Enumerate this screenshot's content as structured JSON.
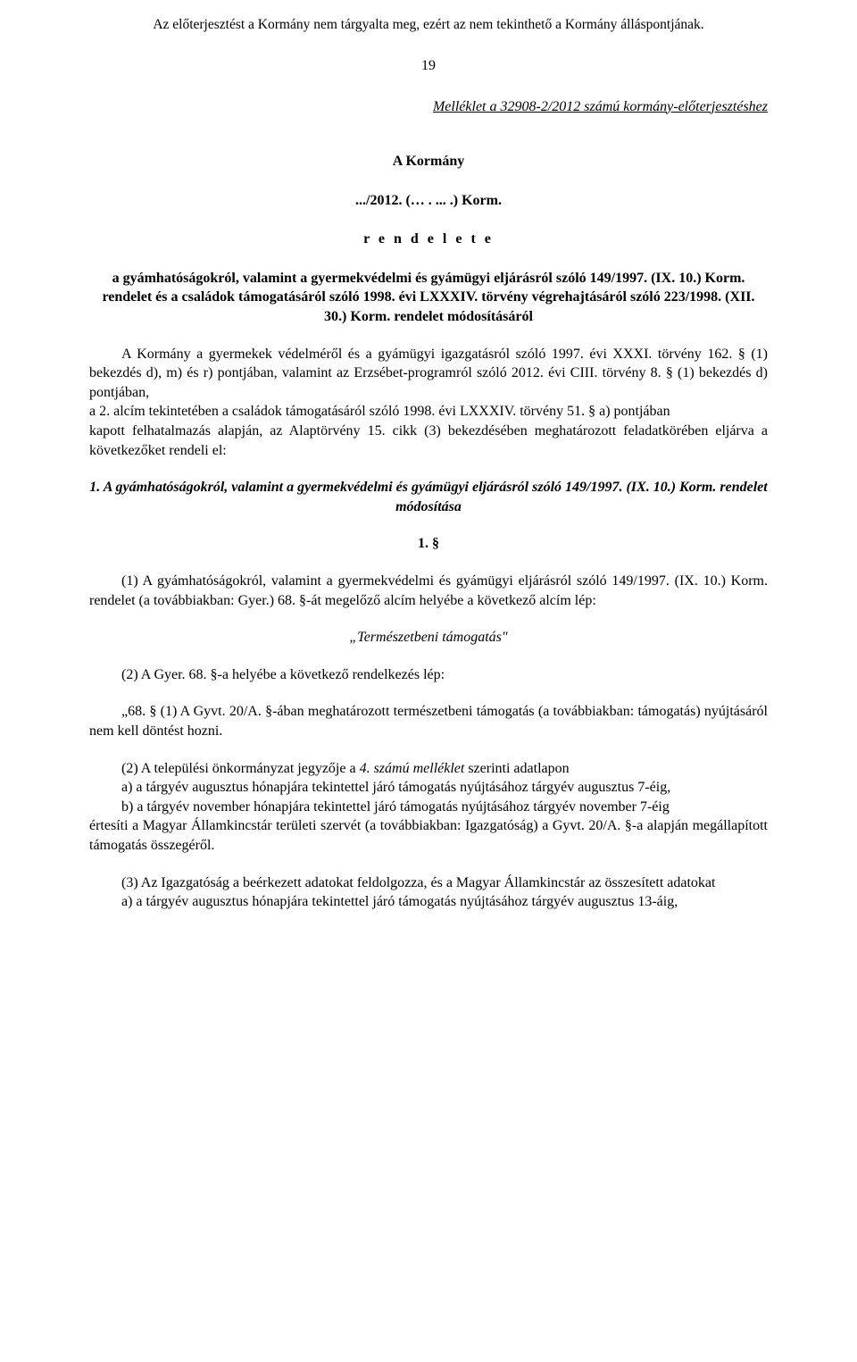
{
  "header_note": "Az előterjesztést a Kormány nem tárgyalta meg, ezért az nem tekinthető a Kormány álláspontjának.",
  "page_number": "19",
  "attachment": "Melléklet a 32908-2/2012 számú kormány-előterjesztéshez",
  "title1": "A Kormány",
  "title2": ".../2012. (… . ... .) Korm.",
  "rendelete": "r e n d e l e t e",
  "heading": "a gyámhatóságokról, valamint a gyermekvédelmi és gyámügyi eljárásról szóló 149/1997. (IX. 10.) Korm. rendelet és a családok támogatásáról szóló 1998. évi LXXXIV. törvény végrehajtásáról szóló 223/1998. (XII. 30.) Korm. rendelet módosításáról",
  "preamble": "A Kormány a gyermekek védelméről és a gyámügyi igazgatásról szóló 1997. évi XXXI. törvény 162. § (1) bekezdés d), m) és r) pontjában, valamint az Erzsébet-programról szóló 2012. évi CIII. törvény 8. § (1) bekezdés d) pontjában,\na 2. alcím tekintetében a családok támogatásáról szóló 1998. évi LXXXIV. törvény 51. § a) pontjában\nkapott felhatalmazás alapján, az Alaptörvény 15. cikk (3) bekezdésében meghatározott feladatkörében eljárva a következőket rendeli el:",
  "section1_title": "1. A gyámhatóságokról, valamint a gyermekvédelmi és gyámügyi eljárásról szóló 149/1997. (IX. 10.) Korm. rendelet módosítása",
  "section1_num": "1. §",
  "p1": "(1) A gyámhatóságokról, valamint a gyermekvédelmi és gyámügyi eljárásról szóló 149/1997. (IX. 10.) Korm. rendelet (a továbbiakban: Gyer.) 68. §-át megelőző alcím helyébe a következő alcím lép:",
  "citation": "„Természetbeni támogatás\"",
  "p2": "(2) A Gyer. 68. §-a helyébe a következő rendelkezés lép:",
  "p68_1": "„68. § (1) A Gyvt. 20/A. §-ában meghatározott természetbeni támogatás (a továbbiakban: támogatás) nyújtásáról nem kell döntést hozni.",
  "p68_2_lead": "(2) A települési önkormányzat jegyzője a 4. számú melléklet szerinti adatlapon",
  "p68_2_a": "a) a tárgyév augusztus hónapjára tekintettel járó támogatás nyújtásához tárgyév augusztus 7-éig,",
  "p68_2_b": "b) a tárgyév november hónapjára tekintettel járó támogatás nyújtásához tárgyév november 7-éig",
  "p68_2_tail": "értesíti a Magyar Államkincstár területi szervét (a továbbiakban: Igazgatóság) a Gyvt. 20/A. §-a alapján megállapított támogatás összegéről.",
  "p68_3_lead": "(3) Az Igazgatóság a beérkezett adatokat feldolgozza, és a Magyar Államkincstár az összesített adatokat",
  "p68_3_a": "a) a tárgyév augusztus hónapjára tekintettel járó támogatás nyújtásához tárgyév augusztus 13-áig,"
}
